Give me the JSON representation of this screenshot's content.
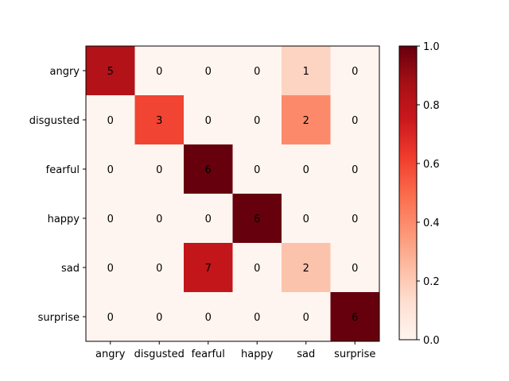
{
  "chart_data": {
    "type": "heatmap",
    "row_labels": [
      "angry",
      "disgusted",
      "fearful",
      "happy",
      "sad",
      "surprise"
    ],
    "col_labels": [
      "angry",
      "disgusted",
      "fearful",
      "happy",
      "sad",
      "surprise"
    ],
    "values": [
      [
        5,
        0,
        0,
        0,
        1,
        0
      ],
      [
        0,
        3,
        0,
        0,
        2,
        0
      ],
      [
        0,
        0,
        6,
        0,
        0,
        0
      ],
      [
        0,
        0,
        0,
        6,
        0,
        0
      ],
      [
        0,
        0,
        7,
        0,
        2,
        0
      ],
      [
        0,
        0,
        0,
        0,
        0,
        6
      ]
    ],
    "normalized": [
      [
        0.833,
        0,
        0,
        0,
        0.167,
        0
      ],
      [
        0,
        0.6,
        0,
        0,
        0.4,
        0
      ],
      [
        0,
        0,
        1.0,
        0,
        0,
        0
      ],
      [
        0,
        0,
        0,
        1.0,
        0,
        0
      ],
      [
        0,
        0,
        0.778,
        0,
        0.222,
        0
      ],
      [
        0,
        0,
        0,
        0,
        0,
        1.0
      ]
    ],
    "colormap": "Reds",
    "colorbar": {
      "range": [
        0,
        1
      ],
      "ticks": [
        "0.0",
        "0.2",
        "0.4",
        "0.6",
        "0.8",
        "1.0"
      ]
    },
    "title": "",
    "xlabel": "",
    "ylabel": ""
  }
}
